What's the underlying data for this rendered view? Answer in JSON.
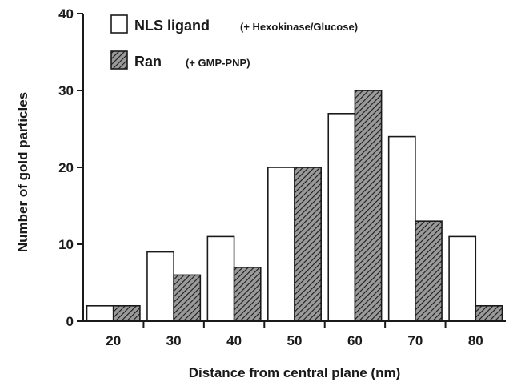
{
  "chart_data": {
    "type": "bar",
    "categories": [
      "20",
      "30",
      "40",
      "50",
      "60",
      "70",
      "80"
    ],
    "series": [
      {
        "name": "NLS ligand",
        "note": "(+ Hexokinase/Glucose)",
        "fill": "#ffffff",
        "values": [
          2,
          9,
          11,
          20,
          27,
          24,
          11
        ]
      },
      {
        "name": "Ran",
        "note": "(+ GMP-PNP)",
        "fill": "hatched",
        "values": [
          2,
          6,
          7,
          20,
          30,
          13,
          2
        ]
      }
    ],
    "xlabel": "Distance from central plane (nm)",
    "ylabel": "Number of gold particles",
    "ylim": [
      0,
      40
    ],
    "yticks": [
      "0",
      "10",
      "20",
      "30",
      "40"
    ],
    "grid": false,
    "legend_position": "top-left"
  },
  "colors": {
    "ink": "#1a1a1a",
    "hatch_bg": "#9a9a9a"
  }
}
